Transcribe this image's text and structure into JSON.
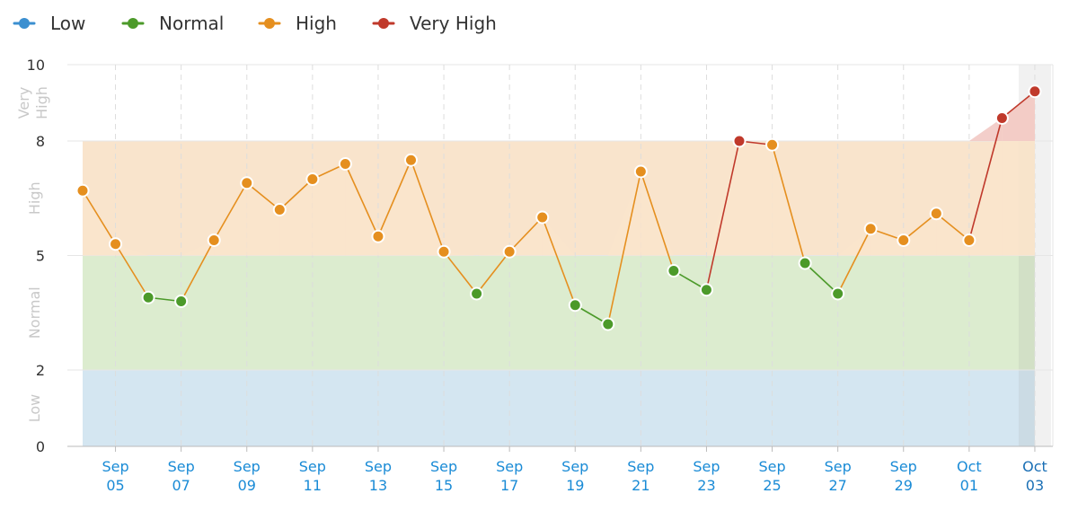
{
  "chart_data": {
    "type": "line",
    "title": "",
    "xlabel": "",
    "ylabel": "",
    "ylim": [
      0,
      10
    ],
    "y_ticks": [
      "0",
      "2",
      "5",
      "8",
      "10"
    ],
    "grid": true,
    "legend_position": "top-left",
    "legend": [
      {
        "name": "Low",
        "color": "#3b8fd0"
      },
      {
        "name": "Normal",
        "color": "#4c9a2a"
      },
      {
        "name": "High",
        "color": "#e58f1f"
      },
      {
        "name": "Very High",
        "color": "#c0392b"
      }
    ],
    "bands": [
      {
        "label": "Low",
        "from": 0,
        "to": 2,
        "color": "#d4e6f1"
      },
      {
        "label": "Normal",
        "from": 2,
        "to": 5,
        "color": "#dceccf"
      },
      {
        "label": "High",
        "from": 5,
        "to": 8,
        "color": "#f9e4cc"
      },
      {
        "label": "Very High",
        "from": 8,
        "to": 10,
        "color": "#ffffff"
      }
    ],
    "x_tick_labels": [
      [
        "Sep",
        "05"
      ],
      [
        "Sep",
        "07"
      ],
      [
        "Sep",
        "09"
      ],
      [
        "Sep",
        "11"
      ],
      [
        "Sep",
        "13"
      ],
      [
        "Sep",
        "15"
      ],
      [
        "Sep",
        "17"
      ],
      [
        "Sep",
        "19"
      ],
      [
        "Sep",
        "21"
      ],
      [
        "Sep",
        "23"
      ],
      [
        "Sep",
        "25"
      ],
      [
        "Sep",
        "27"
      ],
      [
        "Sep",
        "29"
      ],
      [
        "Oct",
        "01"
      ],
      [
        "Oct",
        "03"
      ]
    ],
    "x": [
      "Sep 04",
      "Sep 05",
      "Sep 06",
      "Sep 07",
      "Sep 08",
      "Sep 09",
      "Sep 10",
      "Sep 11",
      "Sep 12",
      "Sep 13",
      "Sep 14",
      "Sep 15",
      "Sep 16",
      "Sep 17",
      "Sep 18",
      "Sep 19",
      "Sep 20",
      "Sep 21",
      "Sep 22",
      "Sep 23",
      "Sep 24",
      "Sep 25",
      "Sep 26",
      "Sep 27",
      "Sep 28",
      "Sep 29",
      "Sep 30",
      "Oct 01",
      "Oct 02",
      "Oct 03"
    ],
    "values": [
      6.7,
      5.3,
      3.9,
      3.8,
      5.4,
      6.9,
      6.2,
      7.0,
      7.4,
      5.5,
      7.5,
      5.1,
      4.0,
      5.1,
      6.0,
      3.7,
      3.2,
      7.2,
      4.6,
      4.1,
      8.0,
      7.9,
      4.8,
      4.0,
      5.7,
      5.4,
      6.1,
      5.4,
      8.6,
      9.3
    ],
    "highlight_last": true
  }
}
